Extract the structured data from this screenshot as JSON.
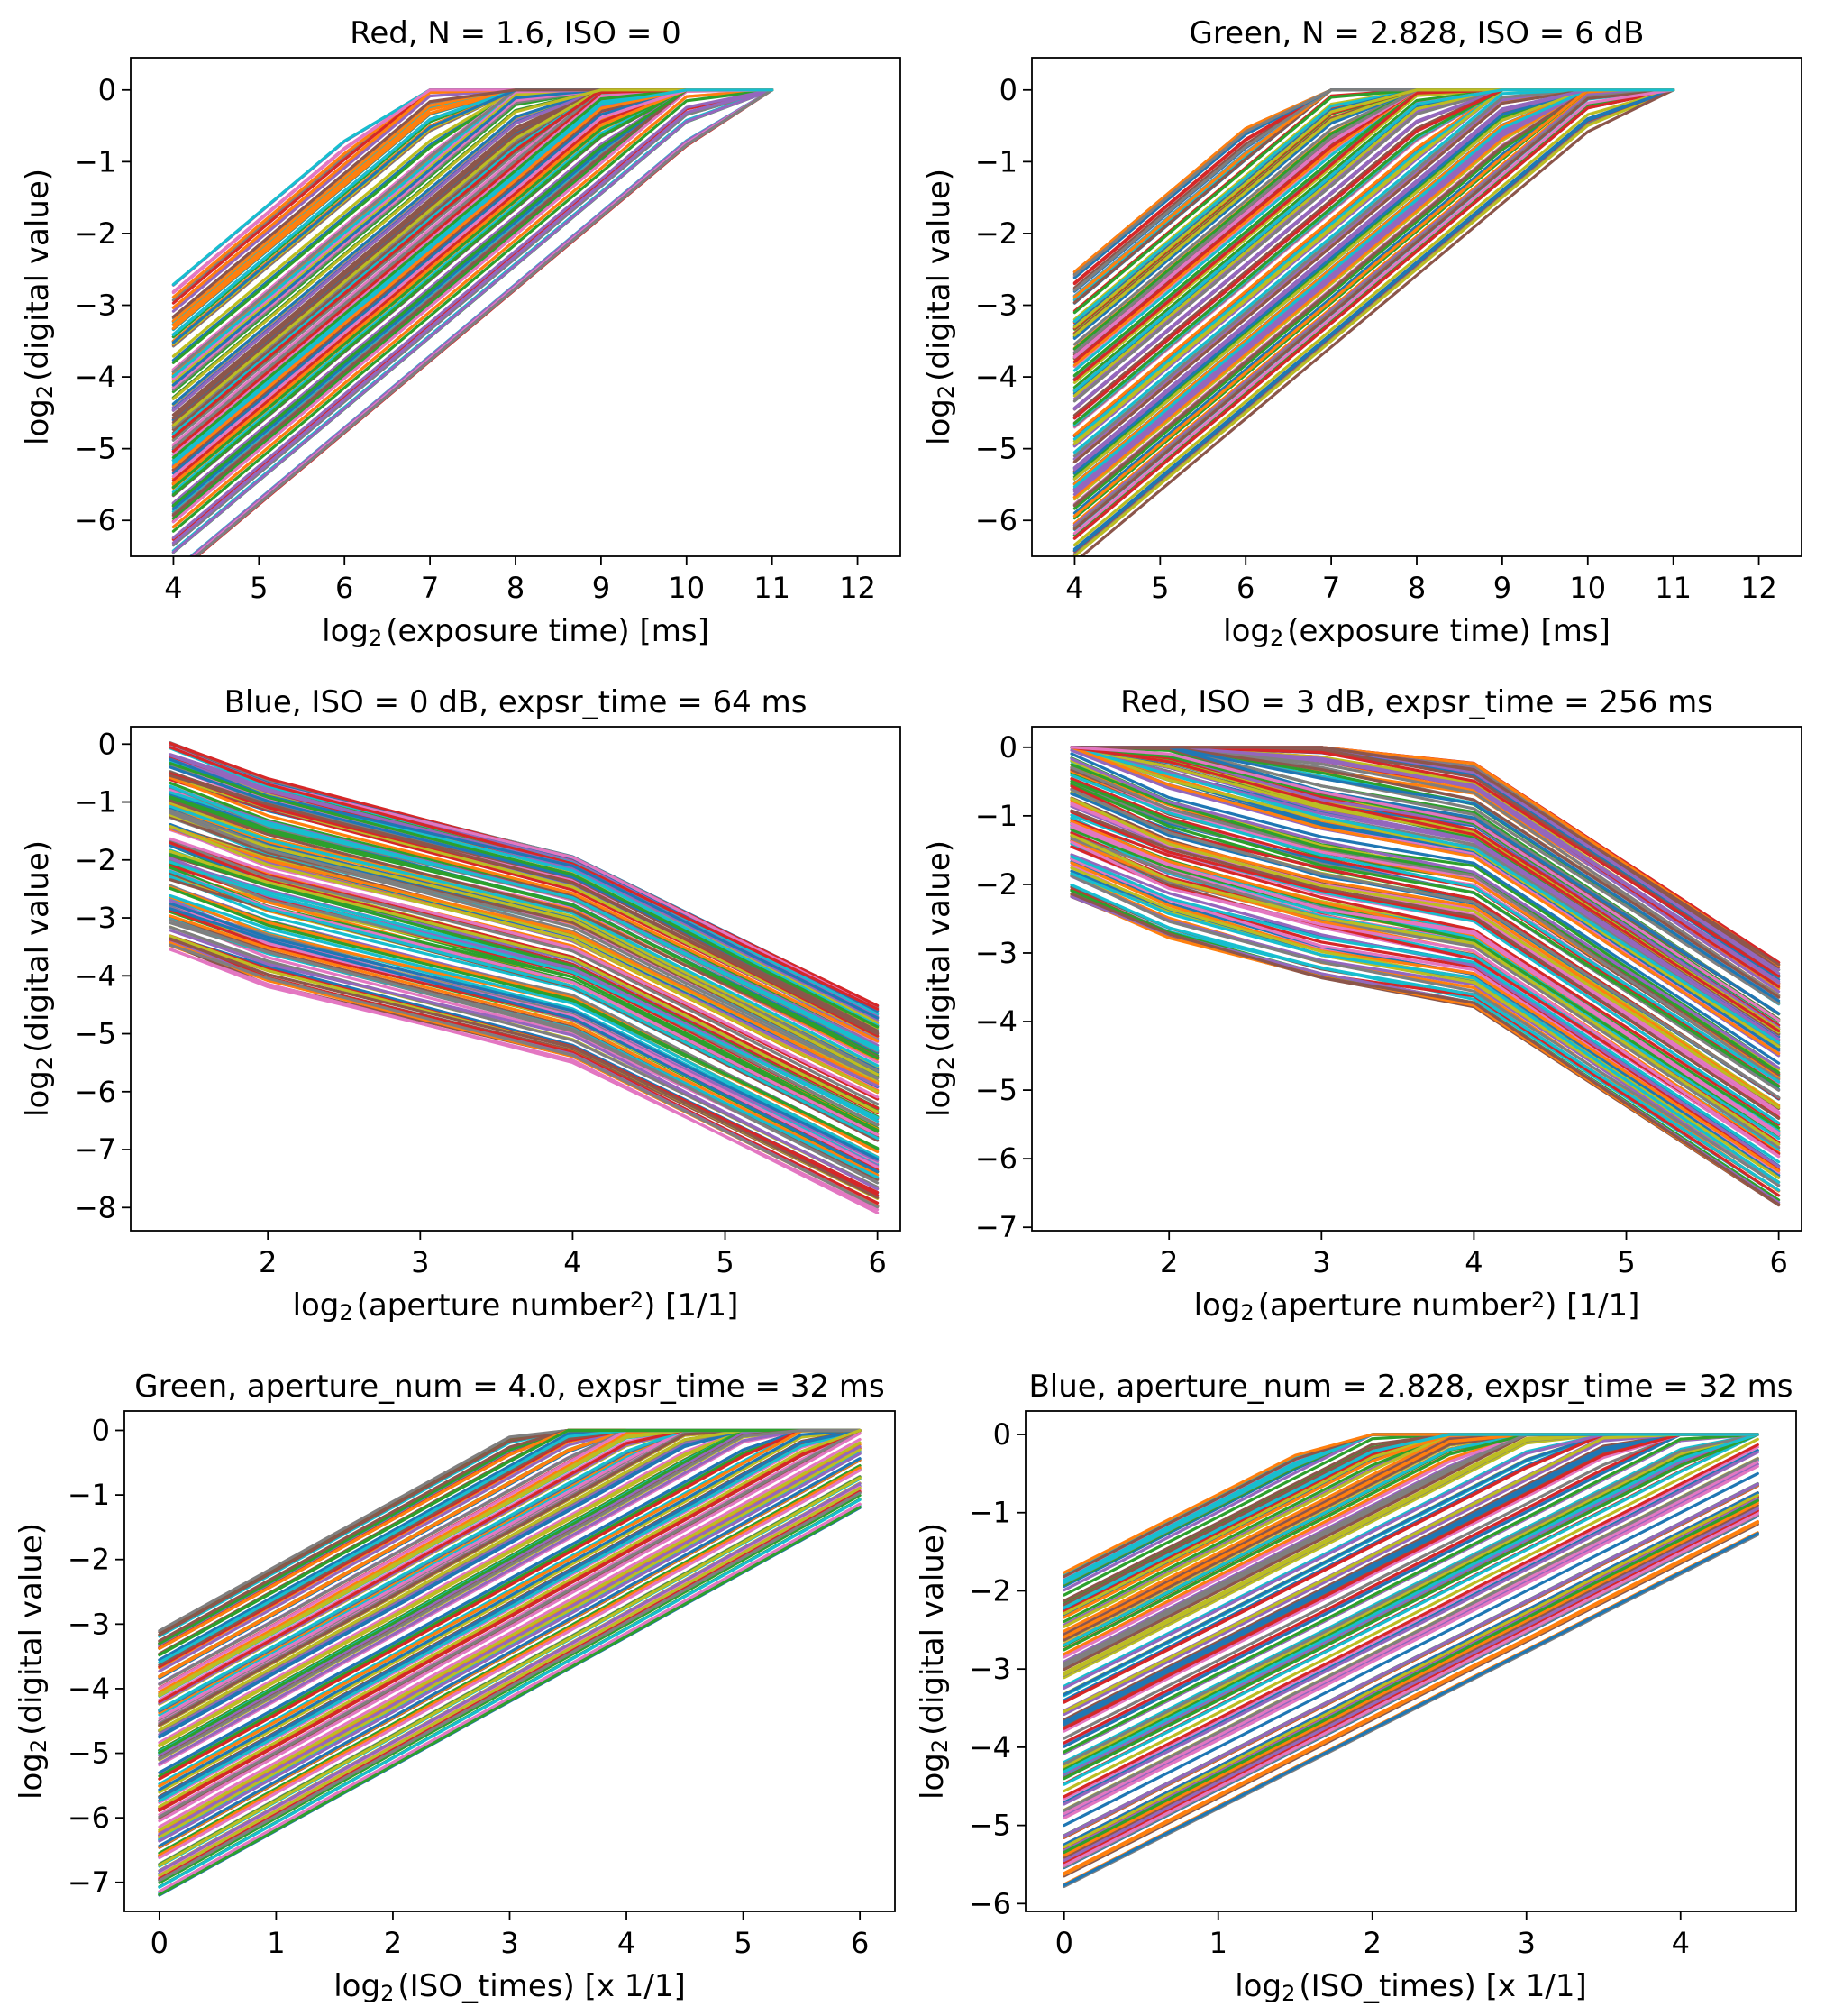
{
  "chart_data": [
    {
      "type": "line",
      "title": "Red, N = 1.6, ISO = 0",
      "xlabel": {
        "pre": "log",
        "sub": "2",
        "post": "(exposure time) [ms]"
      },
      "ylabel": {
        "pre": "log",
        "sub": "2",
        "post": "(digital value)"
      },
      "xlim": [
        3.5,
        12.5
      ],
      "ylim": [
        -6.5,
        0.45
      ],
      "xticks": [
        4,
        5,
        6,
        7,
        8,
        9,
        10,
        11,
        12
      ],
      "xtick_labels": [
        "4",
        "5",
        "6",
        "7",
        "8",
        "9",
        "10",
        "11",
        "12"
      ],
      "yticks": [
        0,
        -1,
        -2,
        -3,
        -4,
        -5,
        -6
      ],
      "ytick_labels": [
        "0",
        "−1",
        "−2",
        "−3",
        "−4",
        "−5",
        "−6"
      ],
      "x": [
        4,
        5,
        6,
        7,
        8,
        9,
        10,
        11
      ],
      "family": {
        "kind": "saturating",
        "count": 160,
        "start_min": -6.8,
        "start_max": -2.7,
        "slope": 1.0,
        "ceiling": 0.0
      }
    },
    {
      "type": "line",
      "title": "Green, N = 2.828, ISO = 6 dB",
      "xlabel": {
        "pre": "log",
        "sub": "2",
        "post": "(exposure time) [ms]"
      },
      "ylabel": {
        "pre": "log",
        "sub": "2",
        "post": "(digital value)"
      },
      "xlim": [
        3.5,
        12.5
      ],
      "ylim": [
        -6.5,
        0.45
      ],
      "xticks": [
        4,
        5,
        6,
        7,
        8,
        9,
        10,
        11,
        12
      ],
      "xtick_labels": [
        "4",
        "5",
        "6",
        "7",
        "8",
        "9",
        "10",
        "11",
        "12"
      ],
      "yticks": [
        0,
        -1,
        -2,
        -3,
        -4,
        -5,
        -6
      ],
      "ytick_labels": [
        "0",
        "−1",
        "−2",
        "−3",
        "−4",
        "−5",
        "−6"
      ],
      "x": [
        4,
        5,
        6,
        7,
        8,
        9,
        10,
        11
      ],
      "family": {
        "kind": "saturating",
        "count": 160,
        "start_min": -6.6,
        "start_max": -2.5,
        "slope": 1.0,
        "ceiling": 0.0
      }
    },
    {
      "type": "line",
      "title": "Blue, ISO = 0 dB, expsr_time = 64 ms",
      "xlabel": {
        "pre": "log",
        "sub": "2",
        "post": "(aperture number",
        "sup": "2",
        "post2": ") [1/1]"
      },
      "ylabel": {
        "pre": "log",
        "sub": "2",
        "post": "(digital value)"
      },
      "xlim": [
        1.1,
        6.15
      ],
      "ylim": [
        -8.4,
        0.3
      ],
      "xticks": [
        2,
        3,
        4,
        5,
        6
      ],
      "xtick_labels": [
        "2",
        "3",
        "4",
        "5",
        "6"
      ],
      "yticks": [
        0,
        -1,
        -2,
        -3,
        -4,
        -5,
        -6,
        -7,
        -8
      ],
      "ytick_labels": [
        "0",
        "−1",
        "−2",
        "−3",
        "−4",
        "−5",
        "−6",
        "−7",
        "−8"
      ],
      "x": [
        1.36,
        2,
        4,
        6
      ],
      "family": {
        "kind": "profile",
        "count": 160,
        "start_min": -3.55,
        "start_max": 0.0,
        "offsets": [
          0,
          -0.6,
          -1.9,
          -4.5
        ]
      }
    },
    {
      "type": "line",
      "title": "Red, ISO = 3 dB, expsr_time = 256 ms",
      "xlabel": {
        "pre": "log",
        "sub": "2",
        "post": "(aperture number",
        "sup": "2",
        "post2": ") [1/1]"
      },
      "ylabel": {
        "pre": "log",
        "sub": "2",
        "post": "(digital value)"
      },
      "xlim": [
        1.1,
        6.15
      ],
      "ylim": [
        -7.05,
        0.3
      ],
      "xticks": [
        2,
        3,
        4,
        5,
        6
      ],
      "xtick_labels": [
        "2",
        "3",
        "4",
        "5",
        "6"
      ],
      "yticks": [
        0,
        -1,
        -2,
        -3,
        -4,
        -5,
        -6,
        -7
      ],
      "ytick_labels": [
        "0",
        "−1",
        "−2",
        "−3",
        "−4",
        "−5",
        "−6",
        "−7"
      ],
      "x": [
        1.36,
        2,
        3,
        4,
        6
      ],
      "family": {
        "kind": "profile_clip",
        "count": 160,
        "start_min": -2.2,
        "start_max": 1.4,
        "offsets": [
          0,
          -0.6,
          -1.2,
          -1.6,
          -4.5
        ],
        "ceiling": 0.0
      }
    },
    {
      "type": "line",
      "title": "Green, aperture_num = 4.0, expsr_time = 32 ms",
      "xlabel": {
        "pre": "log",
        "sub": "2",
        "post": "(ISO_times) [x 1/1]"
      },
      "ylabel": {
        "pre": "log",
        "sub": "2",
        "post": "(digital value)"
      },
      "xlim": [
        -0.3,
        6.3
      ],
      "ylim": [
        -7.45,
        0.3
      ],
      "xticks": [
        0,
        1,
        2,
        3,
        4,
        5,
        6
      ],
      "xtick_labels": [
        "0",
        "1",
        "2",
        "3",
        "4",
        "5",
        "6"
      ],
      "yticks": [
        0,
        -1,
        -2,
        -3,
        -4,
        -5,
        -6,
        -7
      ],
      "ytick_labels": [
        "0",
        "−1",
        "−2",
        "−3",
        "−4",
        "−5",
        "−6",
        "−7"
      ],
      "x": [
        0,
        0.5,
        1,
        1.5,
        2,
        2.5,
        3,
        3.5,
        4,
        4.5,
        5,
        5.5,
        6
      ],
      "family": {
        "kind": "saturating",
        "count": 160,
        "start_min": -7.2,
        "start_max": -3.1,
        "slope": 1.0,
        "ceiling": 0.0
      }
    },
    {
      "type": "line",
      "title": "Blue, aperture_num = 2.828, expsr_time = 32 ms",
      "xlabel": {
        "pre": "log",
        "sub": "2",
        "post": "(ISO_times) [x 1/1]"
      },
      "ylabel": {
        "pre": "log",
        "sub": "2",
        "post": "(digital value)"
      },
      "xlim": [
        -0.25,
        4.75
      ],
      "ylim": [
        -6.1,
        0.3
      ],
      "xticks": [
        0,
        1,
        2,
        3,
        4
      ],
      "xtick_labels": [
        "0",
        "1",
        "2",
        "3",
        "4"
      ],
      "yticks": [
        0,
        -1,
        -2,
        -3,
        -4,
        -5,
        -6
      ],
      "ytick_labels": [
        "0",
        "−1",
        "−2",
        "−3",
        "−4",
        "−5",
        "−6"
      ],
      "x": [
        0,
        0.5,
        1,
        1.5,
        2,
        2.5,
        3,
        3.5,
        4,
        4.5
      ],
      "family": {
        "kind": "saturating",
        "count": 160,
        "start_min": -5.8,
        "start_max": -1.75,
        "slope": 1.0,
        "ceiling": 0.0
      }
    }
  ],
  "palette": [
    "#1f77b4",
    "#ff7f0e",
    "#2ca02c",
    "#d62728",
    "#9467bd",
    "#8c564b",
    "#e377c2",
    "#7f7f7f",
    "#bcbd22",
    "#17becf"
  ]
}
